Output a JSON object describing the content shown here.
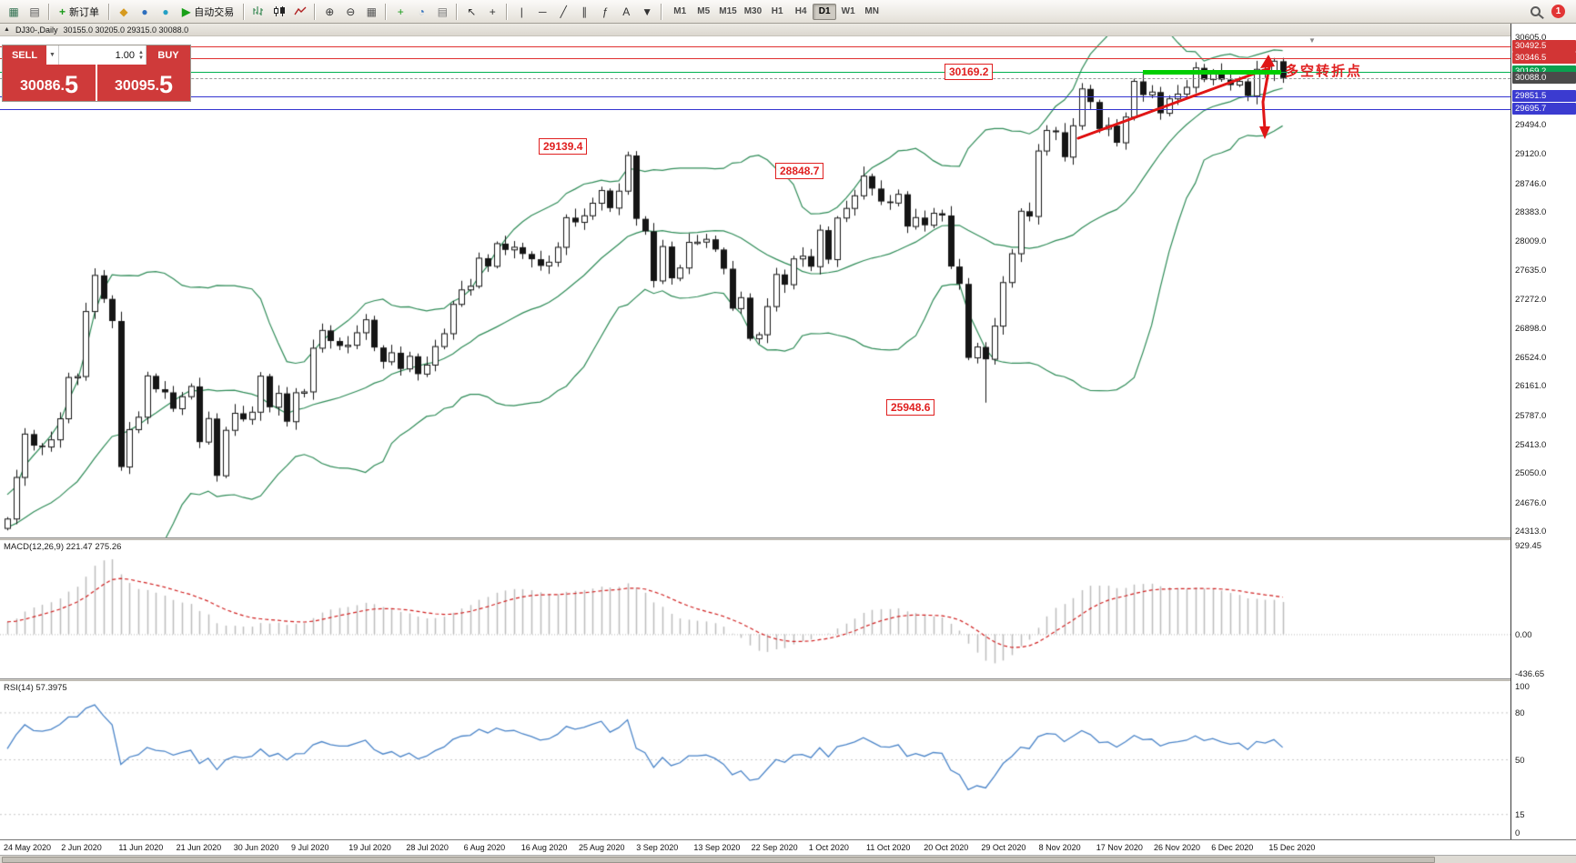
{
  "app": {
    "notification_count": "1"
  },
  "chart_header": {
    "symbol": "DJ30-,Daily",
    "ohlc": "30155.0 30205.0 29315.0 30088.0"
  },
  "toolbar": {
    "timeframes": [
      "M1",
      "M5",
      "M15",
      "M30",
      "H1",
      "H4",
      "D1",
      "W1",
      "MN"
    ],
    "active_timeframe": "D1",
    "icons": [
      {
        "name": "chart-window-icon",
        "glyph": "▦",
        "color": "#2f6f4f"
      },
      {
        "name": "profiles-icon",
        "glyph": "▤",
        "color": "#555555"
      },
      {
        "name": "sep"
      },
      {
        "name": "new-order-button",
        "glyph": "+",
        "glyph_color": "#1a9b1a",
        "label": "新订单"
      },
      {
        "name": "sep"
      },
      {
        "name": "market-depth-icon",
        "glyph": "◆",
        "color": "#d69a1e"
      },
      {
        "name": "data-window-icon",
        "glyph": "●",
        "color": "#2e6fbd"
      },
      {
        "name": "community-icon",
        "glyph": "●",
        "color": "#24a0c4"
      },
      {
        "name": "auto-trading-button",
        "glyph": "▶",
        "glyph_color": "#18a018",
        "label": "自动交易"
      },
      {
        "name": "sep"
      },
      {
        "name": "bars-chart-icon",
        "svg": "bars"
      },
      {
        "name": "candlestick-chart-icon",
        "svg": "candles"
      },
      {
        "name": "line-chart-icon",
        "svg": "line"
      },
      {
        "name": "sep"
      },
      {
        "name": "zoom-in-icon",
        "glyph": "⊕",
        "color": "#333333"
      },
      {
        "name": "zoom-out-icon",
        "glyph": "⊖",
        "color": "#333333"
      },
      {
        "name": "tile-windows-icon",
        "glyph": "▦",
        "color": "#555555"
      },
      {
        "name": "sep"
      },
      {
        "name": "indicators-icon",
        "glyph": "+",
        "color": "#1a9b1a"
      },
      {
        "name": "periods-icon",
        "glyph": "◔",
        "color": "#2e6fbd"
      },
      {
        "name": "templates-icon",
        "glyph": "▤",
        "color": "#777777"
      },
      {
        "name": "sep"
      },
      {
        "name": "cursor-icon",
        "glyph": "↖",
        "color": "#333333"
      },
      {
        "name": "crosshair-icon",
        "glyph": "+",
        "color": "#333333"
      },
      {
        "name": "sep"
      },
      {
        "name": "vertical-line-icon",
        "glyph": "|",
        "color": "#333333"
      },
      {
        "name": "horizontal-line-icon",
        "glyph": "─",
        "color": "#333333"
      },
      {
        "name": "trendline-icon",
        "glyph": "╱",
        "color": "#333333"
      },
      {
        "name": "channel-icon",
        "glyph": "∥",
        "color": "#333333"
      },
      {
        "name": "fibonacci-icon",
        "glyph": "ƒ",
        "color": "#333333"
      },
      {
        "name": "text-icon",
        "glyph": "A",
        "color": "#333333"
      },
      {
        "name": "arrows-icon",
        "glyph": "▼",
        "color": "#333333"
      },
      {
        "name": "sep"
      }
    ]
  },
  "trade_panel": {
    "sell_label": "SELL",
    "buy_label": "BUY",
    "volume": "1.00",
    "sell_price": "30086.",
    "sell_price_big": "5",
    "buy_price": "30095.",
    "buy_price_big": "5"
  },
  "annotations": {
    "price_label_1": "30169.2",
    "price_label_2": "29139.4",
    "price_label_3": "28848.7",
    "price_label_4": "25948.6",
    "turning_point_text": "多空转折点"
  },
  "price_axis": {
    "gridline_labels": [
      "30605.0",
      "29494.0",
      "29120.0",
      "28746.0",
      "28383.0",
      "28009.0",
      "27635.0",
      "27272.0",
      "26898.0",
      "26524.0",
      "26161.0",
      "25787.0",
      "25413.0",
      "25050.0",
      "24676.0",
      "24313.0"
    ],
    "tags": [
      {
        "label": "30492.5",
        "value": 30492.5,
        "style": "red"
      },
      {
        "label": "30346.5",
        "value": 30346.5,
        "style": "red"
      },
      {
        "label": "30169.2",
        "value": 30169.2,
        "style": "green"
      },
      {
        "label": "30088.0",
        "value": 30088.0,
        "style": "dark"
      },
      {
        "label": "29851.5",
        "value": 29851.5,
        "style": "blue"
      },
      {
        "label": "29695.7",
        "value": 29695.7,
        "style": "blue"
      }
    ]
  },
  "macd_panel": {
    "label": "MACD(12,26,9) 221.47 275.26",
    "max_label": "929.45",
    "zero_label": "0.00",
    "min_label": "-436.65"
  },
  "rsi_panel": {
    "label": "RSI(14) 57.3975",
    "scale_labels": [
      100,
      80,
      50,
      15,
      0
    ],
    "levels": [
      80,
      50,
      15
    ]
  },
  "x_axis": {
    "dates": [
      "24 May 2020",
      "2 Jun 2020",
      "11 Jun 2020",
      "21 Jun 2020",
      "30 Jun 2020",
      "9 Jul 2020",
      "19 Jul 2020",
      "28 Jul 2020",
      "6 Aug 2020",
      "16 Aug 2020",
      "25 Aug 2020",
      "3 Sep 2020",
      "13 Sep 2020",
      "22 Sep 2020",
      "1 Oct 2020",
      "11 Oct 2020",
      "20 Oct 2020",
      "29 Oct 2020",
      "8 Nov 2020",
      "17 Nov 2020",
      "26 Nov 2020",
      "6 Dec 2020",
      "15 Dec 2020"
    ]
  },
  "chart_data": {
    "type": "candlestick",
    "symbol": "DJ30-",
    "period": "Daily",
    "title_ohlc": {
      "open": 30155.0,
      "high": 30205.0,
      "low": 29315.0,
      "close": 30088.0
    },
    "bid": 30086.5,
    "ask": 30095.5,
    "ylim": [
      24230,
      30620
    ],
    "macd_range": [
      -436.65,
      929.45
    ],
    "rsi_range": [
      0,
      100
    ],
    "indicators": {
      "bollinger": {
        "period": 20,
        "deviation": 2
      },
      "macd": {
        "fast": 12,
        "slow": 26,
        "signal": 9,
        "current": [
          221.47,
          275.26
        ]
      },
      "rsi": {
        "period": 14,
        "current": 57.3975
      }
    },
    "price_lines": [
      {
        "price": 30492.5,
        "color": "red"
      },
      {
        "price": 30346.5,
        "color": "red"
      },
      {
        "price": 30169.2,
        "color": "green"
      },
      {
        "price": 30088.0,
        "color": "dashed_gray"
      },
      {
        "price": 29851.5,
        "color": "blue"
      },
      {
        "price": 29695.7,
        "color": "blue"
      }
    ],
    "prehistory": [
      24000,
      24100,
      23900,
      24200,
      24350,
      24150,
      24300,
      24450,
      24200,
      24500,
      24400,
      24300,
      24550,
      24600,
      24450,
      24700,
      24650,
      24500,
      24400
    ],
    "closes": [
      24465,
      24995,
      25548,
      25401,
      25383,
      25475,
      25743,
      26270,
      26282,
      27111,
      27572,
      27272,
      26990,
      25128,
      25605,
      25763,
      26290,
      26120,
      26080,
      25871,
      26025,
      26156,
      25446,
      25746,
      25016,
      25596,
      25813,
      25735,
      25827,
      26287,
      25890,
      26067,
      25706,
      26075,
      26086,
      26643,
      26870,
      26735,
      26672,
      26681,
      26840,
      27006,
      26652,
      26470,
      26585,
      26379,
      26540,
      26313,
      26428,
      26664,
      26828,
      27202,
      27387,
      27433,
      27791,
      27687,
      27977,
      27897,
      27931,
      27845,
      27778,
      27693,
      27740,
      27930,
      28308,
      28248,
      28332,
      28492,
      28654,
      28430,
      28646,
      29101,
      28293,
      28133,
      27501,
      27940,
      27535,
      27666,
      27993,
      27996,
      28032,
      27902,
      27657,
      27148,
      27288,
      26763,
      26815,
      27174,
      27584,
      27453,
      27782,
      27817,
      27683,
      28149,
      27773,
      28303,
      28426,
      28587,
      28838,
      28679,
      28514,
      28494,
      28606,
      28195,
      28309,
      28211,
      28364,
      28336,
      27685,
      27463,
      26520,
      26659,
      26502,
      26925,
      27480,
      27848,
      28390,
      28323,
      29158,
      29420,
      29397,
      29080,
      29480,
      29950,
      29783,
      29438,
      29483,
      29263,
      29591,
      30046,
      29872,
      29910,
      29639,
      29824,
      29884,
      29970,
      30218,
      30069,
      30174,
      30069,
      29999,
      30046,
      29861,
      30199,
      30155,
      30303,
      30088
    ],
    "high_overrides": {
      "71": 29150,
      "98": 28960,
      "112": 26720,
      "145": 30344
    },
    "low_overrides": {
      "112": 25949
    }
  },
  "colors": {
    "band_green": "#2e8b57",
    "line_red": "#e03030",
    "line_green": "#00b050",
    "line_blue": "#3434d0",
    "rsi_blue": "#4a84c8",
    "macd_signal_red": "#d02020",
    "macd_hist_silver": "#bdbdbd"
  }
}
